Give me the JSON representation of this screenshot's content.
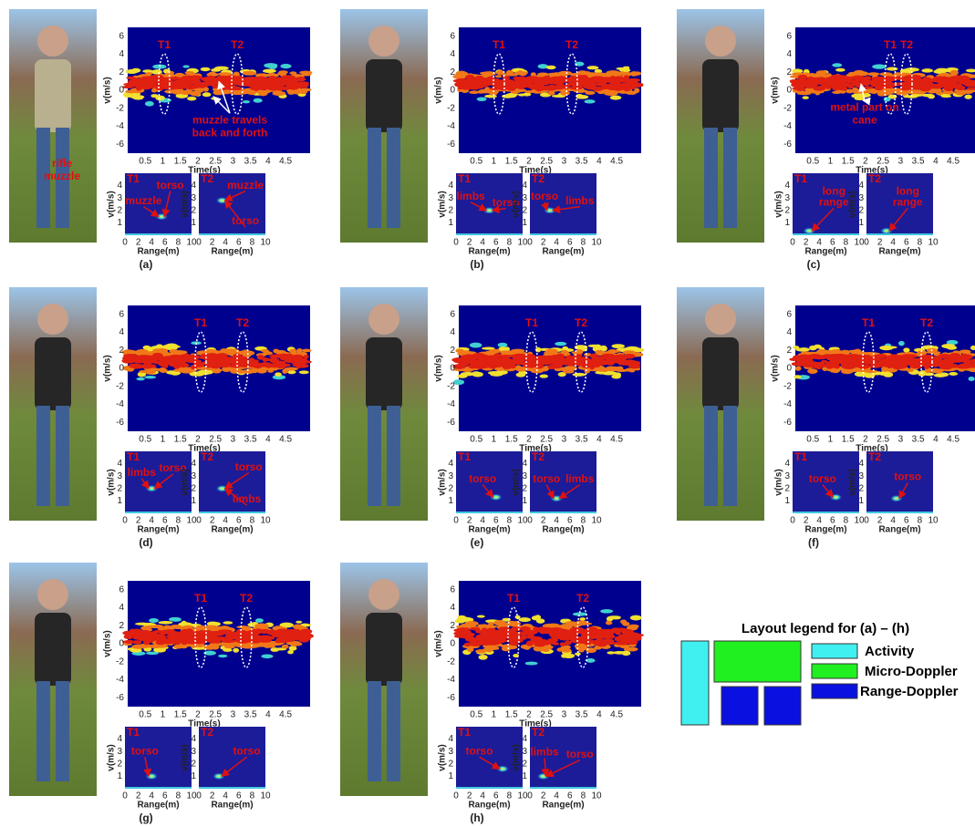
{
  "axes": {
    "micro_doppler": {
      "ylabel": "v(m/s)",
      "xlabel": "Time(s)",
      "yticks": [
        6,
        4,
        2,
        0,
        -2,
        -4,
        -6
      ],
      "xticks": [
        0.5,
        1,
        1.5,
        2,
        2.5,
        3,
        3.5,
        4,
        4.5
      ]
    },
    "range_doppler": {
      "ylabel": "v(m/s)",
      "xlabel": "Range(m)",
      "yticks": [
        4,
        3,
        2,
        1
      ],
      "xticks": [
        0,
        2,
        4,
        6,
        8,
        10
      ]
    }
  },
  "panels": [
    {
      "label": "(a)",
      "photo_annotations": [
        [
          "rifle",
          "muzzle"
        ]
      ],
      "micro_doppler": {
        "markers": [
          "T1",
          "T2"
        ],
        "annotations": [
          [
            "muzzle travels",
            "back and forth"
          ]
        ]
      },
      "range_doppler": [
        {
          "tag": "T1",
          "annotations": [
            [
              "muzzle"
            ],
            [
              "torso"
            ]
          ]
        },
        {
          "tag": "T2",
          "annotations": [
            [
              "muzzle"
            ],
            [
              "torso"
            ]
          ]
        }
      ]
    },
    {
      "label": "(b)",
      "micro_doppler": {
        "markers": [
          "T1",
          "T2"
        ],
        "annotations": []
      },
      "range_doppler": [
        {
          "tag": "T1",
          "annotations": [
            [
              "limbs"
            ],
            [
              "torso"
            ]
          ]
        },
        {
          "tag": "T2",
          "annotations": [
            [
              "torso"
            ],
            [
              "limbs"
            ]
          ]
        }
      ]
    },
    {
      "label": "(c)",
      "micro_doppler": {
        "markers": [
          "T1",
          "T2"
        ],
        "annotations": [
          [
            "metal part on",
            "cane"
          ]
        ]
      },
      "range_doppler": [
        {
          "tag": "T1",
          "annotations": [
            [
              "long",
              "range"
            ]
          ]
        },
        {
          "tag": "T2",
          "annotations": [
            [
              "long",
              "range"
            ]
          ]
        }
      ]
    },
    {
      "label": "(d)",
      "micro_doppler": {
        "markers": [
          "T1",
          "T2"
        ],
        "annotations": []
      },
      "range_doppler": [
        {
          "tag": "T1",
          "annotations": [
            [
              "limbs"
            ],
            [
              "torso"
            ]
          ]
        },
        {
          "tag": "T2",
          "annotations": [
            [
              "torso"
            ],
            [
              "limbs"
            ]
          ]
        }
      ]
    },
    {
      "label": "(e)",
      "micro_doppler": {
        "markers": [
          "T1",
          "T2"
        ],
        "annotations": []
      },
      "range_doppler": [
        {
          "tag": "T1",
          "annotations": [
            [
              "torso"
            ]
          ]
        },
        {
          "tag": "T2",
          "annotations": [
            [
              "torso"
            ],
            [
              "limbs"
            ]
          ]
        }
      ]
    },
    {
      "label": "(f)",
      "micro_doppler": {
        "markers": [
          "T1",
          "T2"
        ],
        "annotations": []
      },
      "range_doppler": [
        {
          "tag": "T1",
          "annotations": [
            [
              "torso"
            ]
          ]
        },
        {
          "tag": "T2",
          "annotations": [
            [
              "torso"
            ]
          ]
        }
      ]
    },
    {
      "label": "(g)",
      "micro_doppler": {
        "markers": [
          "T1",
          "T2"
        ],
        "annotations": []
      },
      "range_doppler": [
        {
          "tag": "T1",
          "annotations": [
            [
              "torso"
            ]
          ]
        },
        {
          "tag": "T2",
          "annotations": [
            [
              "torso"
            ]
          ]
        }
      ]
    },
    {
      "label": "(h)",
      "micro_doppler": {
        "markers": [
          "T1",
          "T2"
        ],
        "annotations": []
      },
      "range_doppler": [
        {
          "tag": "T1",
          "annotations": [
            [
              "torso"
            ]
          ]
        },
        {
          "tag": "T2",
          "annotations": [
            [
              "limbs"
            ],
            [
              "torso"
            ]
          ]
        }
      ]
    }
  ],
  "legend": {
    "title": "Layout legend for (a) – (h)",
    "items": [
      "Activity",
      "Micro-Doppler",
      "Range-Doppler"
    ]
  }
}
